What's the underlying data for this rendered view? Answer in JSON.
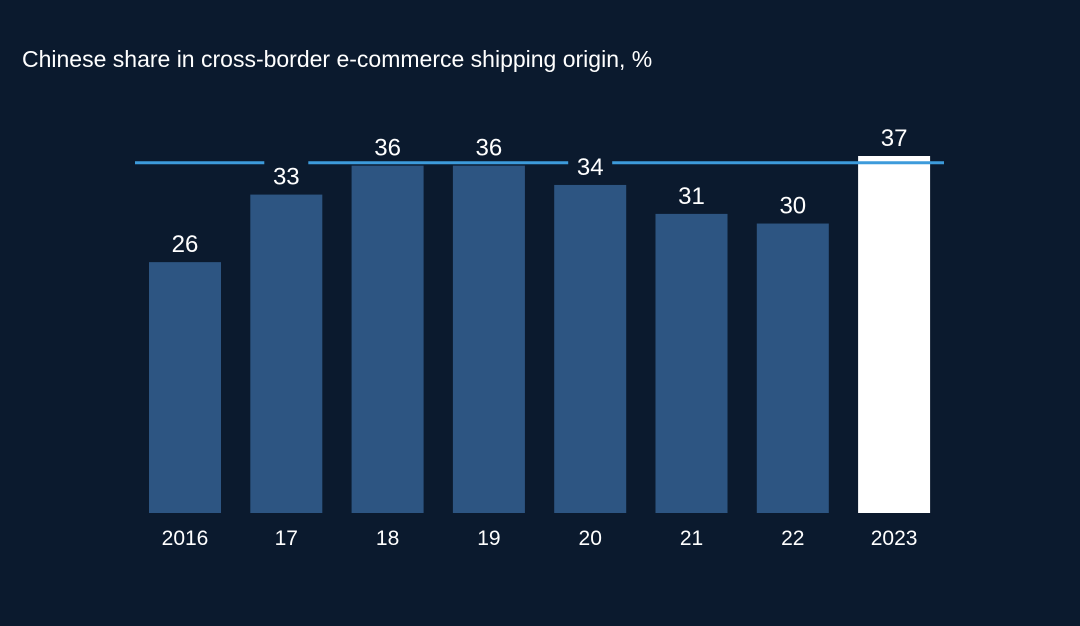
{
  "chart_data": {
    "type": "bar",
    "title": "Chinese share in cross-border e-commerce shipping origin, %",
    "xlabel": "",
    "ylabel": "",
    "categories": [
      "2016",
      "17",
      "18",
      "19",
      "20",
      "21",
      "22",
      "2023"
    ],
    "values": [
      26,
      33,
      36,
      36,
      34,
      31,
      30,
      37
    ],
    "ylim": [
      0,
      37
    ],
    "grid": false,
    "legend": "none",
    "reference_line": 36.3,
    "colors": {
      "background": "#0b1a2e",
      "bar": "#2d5582",
      "highlight_bar": "#ffffff",
      "reference_line": "#3d9bdb",
      "text": "#ffffff"
    },
    "highlight_index": 7
  }
}
